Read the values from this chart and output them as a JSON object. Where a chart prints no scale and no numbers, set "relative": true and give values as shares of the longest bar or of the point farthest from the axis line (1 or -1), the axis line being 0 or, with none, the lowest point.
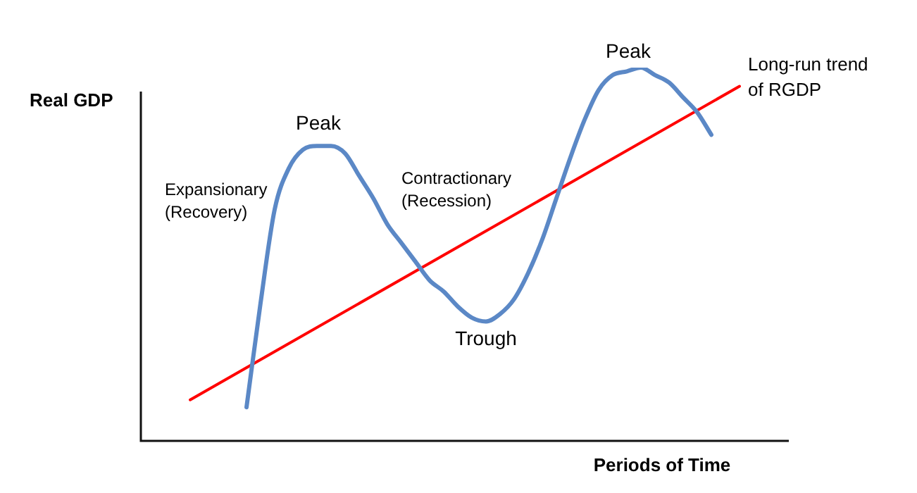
{
  "chart_data": {
    "type": "line",
    "relative": true,
    "xlabel": "Periods of Time",
    "ylabel": "Real GDP",
    "legend": false,
    "categories": [
      null,
      null,
      null,
      null,
      null,
      null,
      null,
      null,
      null,
      null,
      null,
      null,
      null,
      null,
      null,
      null,
      null,
      null,
      null,
      null,
      null,
      null,
      null,
      null,
      null,
      null,
      null,
      null,
      null,
      null,
      null,
      null,
      null,
      null,
      null,
      null,
      null,
      null,
      null,
      null
    ],
    "series": [
      {
        "color": "#5b88c6",
        "values": [
          null,
          null,
          null,
          null,
          0.09,
          0.37,
          0.62,
          0.73,
          0.78,
          0.79,
          0.79,
          0.77,
          0.71,
          0.65,
          0.58,
          0.53,
          0.48,
          0.43,
          0.4,
          0.36,
          0.33,
          0.32,
          0.34,
          0.38,
          0.45,
          0.54,
          0.65,
          0.76,
          0.86,
          0.94,
          0.98,
          0.99,
          1,
          0.98,
          0.96,
          0.92,
          0.88,
          0.82,
          null,
          null
        ]
      },
      {
        "name": "Long-run trend\nof RGDP",
        "color": "#ff0000",
        "values": [
          0.11,
          null,
          null,
          null,
          null,
          null,
          null,
          null,
          null,
          null,
          null,
          null,
          null,
          null,
          null,
          null,
          null,
          null,
          null,
          null,
          null,
          null,
          null,
          null,
          null,
          null,
          null,
          null,
          null,
          null,
          null,
          null,
          null,
          null,
          null,
          null,
          null,
          null,
          null,
          0.95
        ]
      }
    ],
    "annotations": [
      "Peak",
      "Expansionary\n(Recovery)",
      "Contractionary\n(Recession)",
      "Trough",
      "Peak"
    ]
  }
}
